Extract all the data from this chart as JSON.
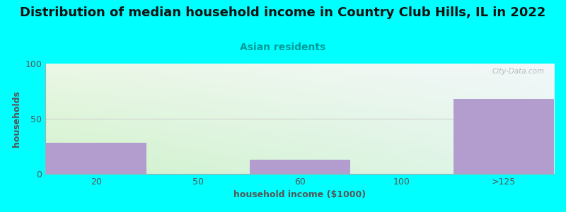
{
  "title": "Distribution of median household income in Country Club Hills, IL in 2022",
  "subtitle": "Asian residents",
  "xlabel": "household income ($1000)",
  "ylabel": "households",
  "categories": [
    "20",
    "50",
    "60",
    "100",
    ">125"
  ],
  "values": [
    28,
    0,
    13,
    0,
    68
  ],
  "bar_color": "#b39dce",
  "background_color": "#00FFFF",
  "ylim": [
    0,
    100
  ],
  "yticks": [
    0,
    50,
    100
  ],
  "title_fontsize": 13,
  "subtitle_fontsize": 10,
  "axis_label_fontsize": 9,
  "tick_fontsize": 9,
  "watermark": "City-Data.com"
}
